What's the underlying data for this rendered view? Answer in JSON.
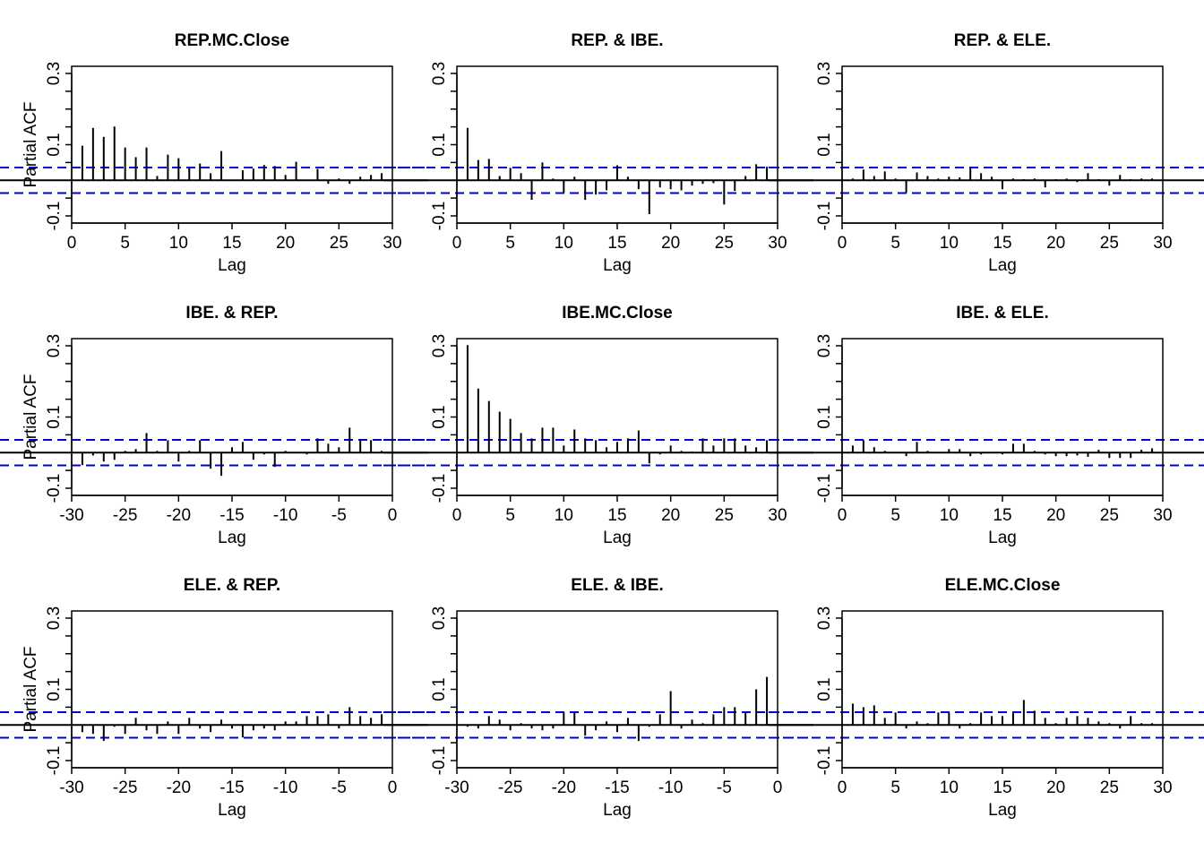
{
  "figure": {
    "type": "pacf-matrix",
    "conf_limit": 0.036,
    "colors": {
      "axes": "#000000",
      "bars": "#000000",
      "conf_lines": "#0000CD",
      "background": "#ffffff"
    }
  },
  "chart_data": [
    {
      "type": "bar",
      "title": "REP.MC.Close",
      "xlabel": "Lag",
      "ylabel": "Partial ACF",
      "xlim": [
        0,
        30
      ],
      "ylim": [
        -0.1,
        0.3
      ],
      "xticks": [
        "0",
        "5",
        "10",
        "15",
        "20",
        "25",
        "30"
      ],
      "yticks": [
        "-0.1",
        "0.1",
        "0.3"
      ],
      "lags": [
        1,
        2,
        3,
        4,
        5,
        6,
        7,
        8,
        9,
        10,
        11,
        12,
        13,
        14,
        15,
        16,
        17,
        18,
        19,
        20,
        21,
        22,
        23,
        24,
        25,
        26,
        27,
        28,
        29
      ],
      "values": [
        0.097,
        0.147,
        0.122,
        0.151,
        0.092,
        0.065,
        0.092,
        0.012,
        0.072,
        0.062,
        0.035,
        0.047,
        0.02,
        0.082,
        0.002,
        0.028,
        0.033,
        0.043,
        0.04,
        0.015,
        0.052,
        0.002,
        0.032,
        -0.01,
        0.005,
        -0.01,
        0.01,
        0.015,
        0.02
      ]
    },
    {
      "type": "bar",
      "title": "REP. & IBE.",
      "xlabel": "Lag",
      "ylabel": "",
      "xlim": [
        0,
        30
      ],
      "ylim": [
        -0.1,
        0.3
      ],
      "xticks": [
        "0",
        "5",
        "10",
        "15",
        "20",
        "25",
        "30"
      ],
      "yticks": [
        "-0.1",
        "0.1",
        "0.3"
      ],
      "lags": [
        1,
        2,
        3,
        4,
        5,
        6,
        7,
        8,
        9,
        10,
        11,
        12,
        13,
        14,
        15,
        16,
        17,
        18,
        19,
        20,
        21,
        22,
        23,
        24,
        25,
        26,
        27,
        28,
        29
      ],
      "values": [
        0.147,
        0.057,
        0.06,
        0.012,
        0.035,
        0.02,
        -0.055,
        0.05,
        0.005,
        -0.035,
        0.01,
        -0.055,
        -0.04,
        -0.028,
        0.042,
        0.01,
        -0.025,
        -0.095,
        -0.02,
        -0.025,
        -0.028,
        -0.015,
        -0.01,
        -0.008,
        -0.068,
        -0.03,
        0.012,
        0.045,
        0.038
      ]
    },
    {
      "type": "bar",
      "title": "REP. & ELE.",
      "xlabel": "Lag",
      "ylabel": "",
      "xlim": [
        0,
        30
      ],
      "ylim": [
        -0.1,
        0.3
      ],
      "xticks": [
        "0",
        "5",
        "10",
        "15",
        "20",
        "25",
        "30"
      ],
      "yticks": [
        "-0.1",
        "0.1",
        "0.3"
      ],
      "lags": [
        1,
        2,
        3,
        4,
        5,
        6,
        7,
        8,
        9,
        10,
        11,
        12,
        13,
        14,
        15,
        16,
        17,
        18,
        19,
        20,
        21,
        22,
        23,
        24,
        25,
        26,
        27,
        28,
        29
      ],
      "values": [
        0.005,
        0.03,
        0.012,
        0.025,
        0.005,
        -0.035,
        0.022,
        0.012,
        0.005,
        0.01,
        0.008,
        0.035,
        0.02,
        0.01,
        -0.025,
        0.005,
        0.003,
        0.005,
        -0.02,
        0.003,
        0.005,
        -0.005,
        0.02,
        0.003,
        -0.015,
        0.015,
        0.003,
        0.005,
        0.005
      ]
    },
    {
      "type": "bar",
      "title": "IBE. & REP.",
      "xlabel": "Lag",
      "ylabel": "Partial ACF",
      "xlim": [
        -30,
        0
      ],
      "ylim": [
        -0.1,
        0.3
      ],
      "xticks": [
        "-30",
        "-25",
        "-20",
        "-15",
        "-10",
        "-5",
        "0"
      ],
      "yticks": [
        "-0.1",
        "0.1",
        "0.3"
      ],
      "lags": [
        -29,
        -28,
        -27,
        -26,
        -25,
        -24,
        -23,
        -22,
        -21,
        -20,
        -19,
        -18,
        -17,
        -16,
        -15,
        -14,
        -13,
        -12,
        -11,
        -10,
        -9,
        -8,
        -7,
        -6,
        -5,
        -4,
        -3,
        -2,
        -1
      ],
      "values": [
        -0.035,
        -0.008,
        -0.025,
        -0.02,
        0.005,
        0.01,
        0.055,
        0.005,
        0.035,
        -0.025,
        0.005,
        0.035,
        -0.045,
        -0.065,
        0.015,
        0.03,
        -0.02,
        -0.005,
        -0.04,
        0.005,
        0.002,
        -0.005,
        0.04,
        0.025,
        0.015,
        0.07,
        0.038,
        0.035,
        0.005
      ]
    },
    {
      "type": "bar",
      "title": "IBE.MC.Close",
      "xlabel": "Lag",
      "ylabel": "",
      "xlim": [
        0,
        30
      ],
      "ylim": [
        -0.1,
        0.3
      ],
      "xticks": [
        "0",
        "5",
        "10",
        "15",
        "20",
        "25",
        "30"
      ],
      "yticks": [
        "-0.1",
        "0.1",
        "0.3"
      ],
      "lags": [
        1,
        2,
        3,
        4,
        5,
        6,
        7,
        8,
        9,
        10,
        11,
        12,
        13,
        14,
        15,
        16,
        17,
        18,
        19,
        20,
        21,
        22,
        23,
        24,
        25,
        26,
        27,
        28,
        29
      ],
      "values": [
        0.302,
        0.18,
        0.145,
        0.115,
        0.095,
        0.055,
        0.04,
        0.07,
        0.07,
        0.02,
        0.065,
        0.04,
        0.035,
        0.015,
        0.03,
        0.04,
        0.062,
        -0.03,
        -0.005,
        0.02,
        0.005,
        0.003,
        0.04,
        0.02,
        0.04,
        0.04,
        0.02,
        0.015,
        0.035
      ]
    },
    {
      "type": "bar",
      "title": "IBE. & ELE.",
      "xlabel": "Lag",
      "ylabel": "",
      "xlim": [
        0,
        30
      ],
      "ylim": [
        -0.1,
        0.3
      ],
      "xticks": [
        "0",
        "5",
        "10",
        "15",
        "20",
        "25",
        "30"
      ],
      "yticks": [
        "-0.1",
        "0.1",
        "0.3"
      ],
      "lags": [
        1,
        2,
        3,
        4,
        5,
        6,
        7,
        8,
        9,
        10,
        11,
        12,
        13,
        14,
        15,
        16,
        17,
        18,
        19,
        20,
        21,
        22,
        23,
        24,
        25,
        26,
        27,
        28,
        29
      ],
      "values": [
        0.02,
        0.035,
        0.015,
        0.005,
        0.002,
        -0.01,
        0.03,
        0.005,
        0.002,
        0.01,
        0.01,
        -0.01,
        -0.005,
        0.002,
        -0.005,
        0.025,
        0.025,
        0.005,
        -0.005,
        -0.01,
        -0.01,
        -0.008,
        -0.012,
        0.008,
        -0.015,
        -0.015,
        -0.015,
        0.008,
        0.012
      ]
    },
    {
      "type": "bar",
      "title": "ELE. & REP.",
      "xlabel": "Lag",
      "ylabel": "Partial ACF",
      "xlim": [
        -30,
        0
      ],
      "ylim": [
        -0.1,
        0.3
      ],
      "xticks": [
        "-30",
        "-25",
        "-20",
        "-15",
        "-10",
        "-5",
        "0"
      ],
      "yticks": [
        "-0.1",
        "0.1",
        "0.3"
      ],
      "lags": [
        -29,
        -28,
        -27,
        -26,
        -25,
        -24,
        -23,
        -22,
        -21,
        -20,
        -19,
        -18,
        -17,
        -16,
        -15,
        -14,
        -13,
        -12,
        -11,
        -10,
        -9,
        -8,
        -7,
        -6,
        -5,
        -4,
        -3,
        -2,
        -1
      ],
      "values": [
        -0.02,
        -0.025,
        -0.045,
        -0.005,
        -0.025,
        0.02,
        -0.015,
        -0.025,
        0.01,
        -0.025,
        0.02,
        -0.01,
        -0.02,
        0.015,
        -0.01,
        -0.035,
        -0.015,
        -0.01,
        -0.015,
        0.01,
        0.01,
        0.025,
        0.025,
        0.03,
        -0.01,
        0.05,
        0.025,
        0.02,
        0.03
      ]
    },
    {
      "type": "bar",
      "title": "ELE. & IBE.",
      "xlabel": "Lag",
      "ylabel": "",
      "xlim": [
        -30,
        0
      ],
      "ylim": [
        -0.1,
        0.3
      ],
      "xticks": [
        "-30",
        "-25",
        "-20",
        "-15",
        "-10",
        "-5",
        "0"
      ],
      "yticks": [
        "-0.1",
        "0.1",
        "0.3"
      ],
      "lags": [
        -29,
        -28,
        -27,
        -26,
        -25,
        -24,
        -23,
        -22,
        -21,
        -20,
        -19,
        -18,
        -17,
        -16,
        -15,
        -14,
        -13,
        -12,
        -11,
        -10,
        -9,
        -8,
        -7,
        -6,
        -5,
        -4,
        -3,
        -2,
        -1
      ],
      "values": [
        -0.005,
        -0.01,
        0.025,
        0.015,
        -0.015,
        0.005,
        -0.01,
        -0.015,
        -0.01,
        0.035,
        0.035,
        -0.03,
        -0.015,
        0.01,
        -0.02,
        0.02,
        -0.045,
        -0.005,
        0.03,
        0.095,
        -0.01,
        0.015,
        0.005,
        0.03,
        0.05,
        0.05,
        0.035,
        0.1,
        0.135
      ]
    },
    {
      "type": "bar",
      "title": "ELE.MC.Close",
      "xlabel": "Lag",
      "ylabel": "",
      "xlim": [
        0,
        30
      ],
      "ylim": [
        -0.1,
        0.3
      ],
      "xticks": [
        "0",
        "5",
        "10",
        "15",
        "20",
        "25",
        "30"
      ],
      "yticks": [
        "-0.1",
        "0.1",
        "0.3"
      ],
      "lags": [
        1,
        2,
        3,
        4,
        5,
        6,
        7,
        8,
        9,
        10,
        11,
        12,
        13,
        14,
        15,
        16,
        17,
        18,
        19,
        20,
        21,
        22,
        23,
        24,
        25,
        26,
        27,
        28,
        29
      ],
      "values": [
        0.06,
        0.05,
        0.055,
        0.02,
        0.035,
        -0.01,
        0.01,
        0.005,
        0.035,
        0.035,
        -0.01,
        0.005,
        0.035,
        0.025,
        0.025,
        0.035,
        0.07,
        0.04,
        0.02,
        0.005,
        0.02,
        0.025,
        0.02,
        0.01,
        0.005,
        -0.01,
        0.025,
        0.005,
        0.005
      ]
    }
  ]
}
